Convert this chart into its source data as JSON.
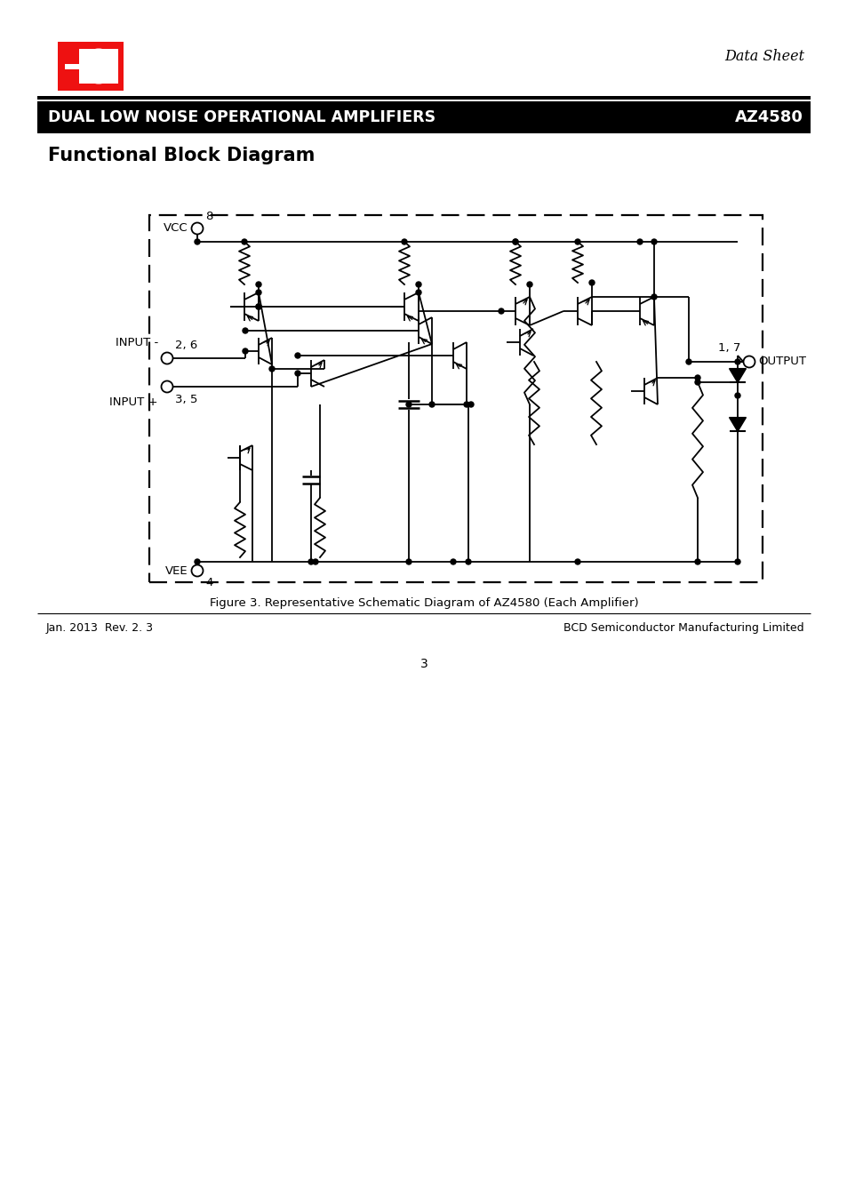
{
  "title": "Functional Block Diagram",
  "header_title": "DUAL LOW NOISE OPERATIONAL AMPLIFIERS",
  "header_part": "AZ4580",
  "data_sheet_text": "Data Sheet",
  "footer_left": "Jan. 2013  Rev. 2. 3",
  "footer_right": "BCD Semiconductor Manufacturing Limited",
  "page_number": "3",
  "figure_caption": "Figure 3. Representative Schematic Diagram of AZ4580 (Each Amplifier)",
  "bg_color": "#ffffff",
  "header_bg": "#000000",
  "header_text_color": "#ffffff"
}
